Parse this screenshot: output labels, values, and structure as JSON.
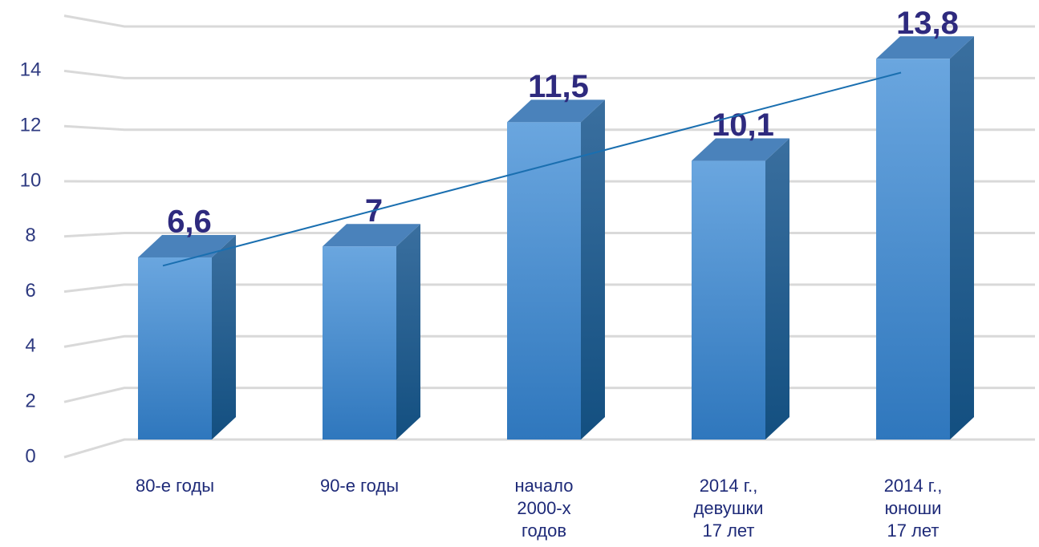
{
  "chart_data": {
    "type": "bar3d",
    "categories": [
      "80-е годы",
      "90-е годы",
      "начало\n2000-х\nгодов",
      "2014 г.,\nдевушки\n17 лет",
      "2014 г.,\nюноши\n17 лет"
    ],
    "values": [
      6.6,
      7,
      11.5,
      10.1,
      13.8
    ],
    "value_labels": [
      "6,6",
      "7",
      "11,5",
      "10,1",
      "13,8"
    ],
    "color": "#4a8ed0",
    "ylim": [
      0,
      16
    ],
    "yticks": [
      0,
      2,
      4,
      6,
      8,
      10,
      12,
      14
    ],
    "grid": true,
    "trendline": true,
    "trendline_color": "#1a6fb0"
  }
}
